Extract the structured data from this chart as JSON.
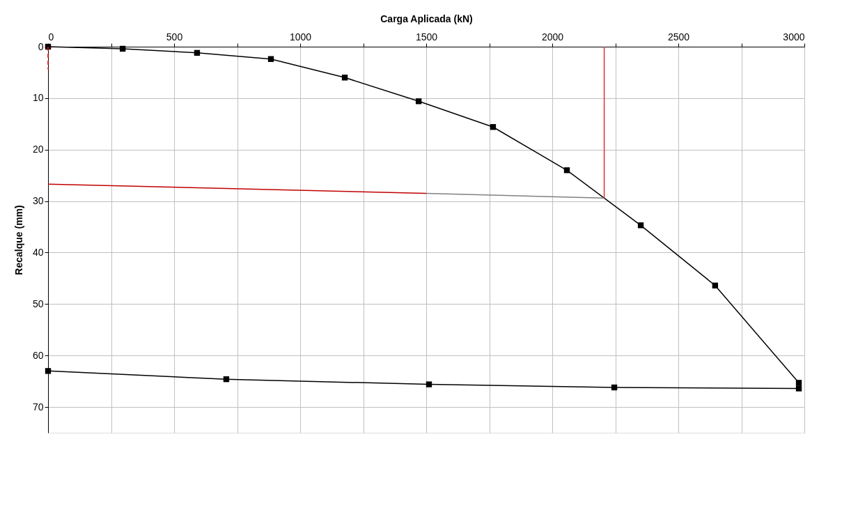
{
  "chart_data": {
    "type": "line",
    "xlabel": "Carga Aplicada (kN)",
    "ylabel": "Recalque (mm)",
    "xlim": [
      0,
      3000
    ],
    "ylim": [
      75,
      0
    ],
    "xticks": [
      0,
      {
        "value": 250,
        "label": null
      },
      500,
      {
        "value": 750,
        "label": null
      },
      1000,
      {
        "value": 1250,
        "label": null
      },
      1500,
      {
        "value": 1750,
        "label": null
      },
      2000,
      {
        "value": 2250,
        "label": null
      },
      2500,
      {
        "value": 2750,
        "label": null
      },
      3000
    ],
    "yticks": [
      0,
      10,
      20,
      30,
      40,
      50,
      60,
      70
    ],
    "grid": true,
    "series": [
      {
        "color": "#000000",
        "marker": "square",
        "line_style": "solid",
        "x": [
          0,
          296,
          591,
          884,
          1177,
          1470,
          1765,
          2058,
          2351,
          2646,
          2978
        ],
        "values": [
          0,
          0.4,
          1.2,
          2.4,
          6.0,
          10.6,
          15.6,
          24.0,
          34.7,
          46.4,
          65.3
        ]
      },
      {
        "color": "#000000",
        "marker": "square",
        "line_style": "solid",
        "x": [
          2978,
          2246,
          1511,
          707,
          0
        ],
        "values": [
          66.4,
          66.2,
          65.6,
          64.6,
          63.0
        ]
      },
      {
        "color": "#808080",
        "marker": "none",
        "line_style": "solid",
        "x": [
          1500,
          2206
        ],
        "values": [
          28.5,
          29.4
        ]
      },
      {
        "color": "#c00000",
        "marker": "none",
        "line_style": "solid",
        "x": [
          0,
          1500
        ],
        "values": [
          26.7,
          28.5
        ]
      },
      {
        "color": "#e03030",
        "marker": "none",
        "line_style": "solid",
        "x": [
          2206,
          2206
        ],
        "values": [
          0,
          29.4
        ]
      },
      {
        "color": "#ff0000",
        "marker": "none",
        "line_style": "dashed",
        "x": [
          0,
          0
        ],
        "values": [
          0,
          4.4
        ]
      }
    ]
  }
}
